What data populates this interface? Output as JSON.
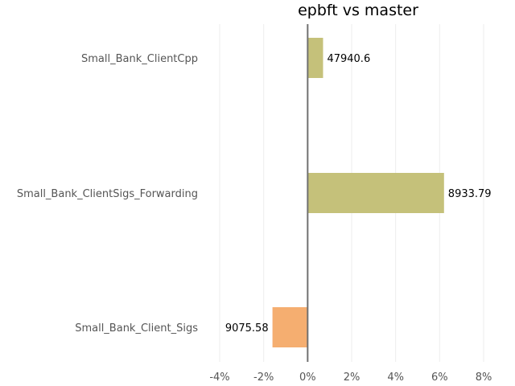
{
  "chart_data": {
    "type": "bar",
    "orientation": "horizontal",
    "title": "epbft vs master",
    "xlabel": "",
    "ylabel": "",
    "xlim": [
      -4,
      8
    ],
    "x_ticks": [
      -4,
      -2,
      0,
      2,
      4,
      6,
      8
    ],
    "x_tick_labels": [
      "-4%",
      "-2%",
      "0%",
      "2%",
      "4%",
      "6%",
      "8%"
    ],
    "grid": "vertical",
    "legend": "none",
    "categories": [
      "Small_Bank_ClientCpp",
      "Small_Bank_ClientSigs_Forwarding",
      "Small_Bank_Client_Sigs"
    ],
    "values": [
      0.7,
      6.2,
      -1.6
    ],
    "data_labels": [
      "47940.6",
      "8933.79",
      "9075.58"
    ],
    "colors": [
      "#c5c17a",
      "#c5c17a",
      "#f5ae70"
    ]
  }
}
